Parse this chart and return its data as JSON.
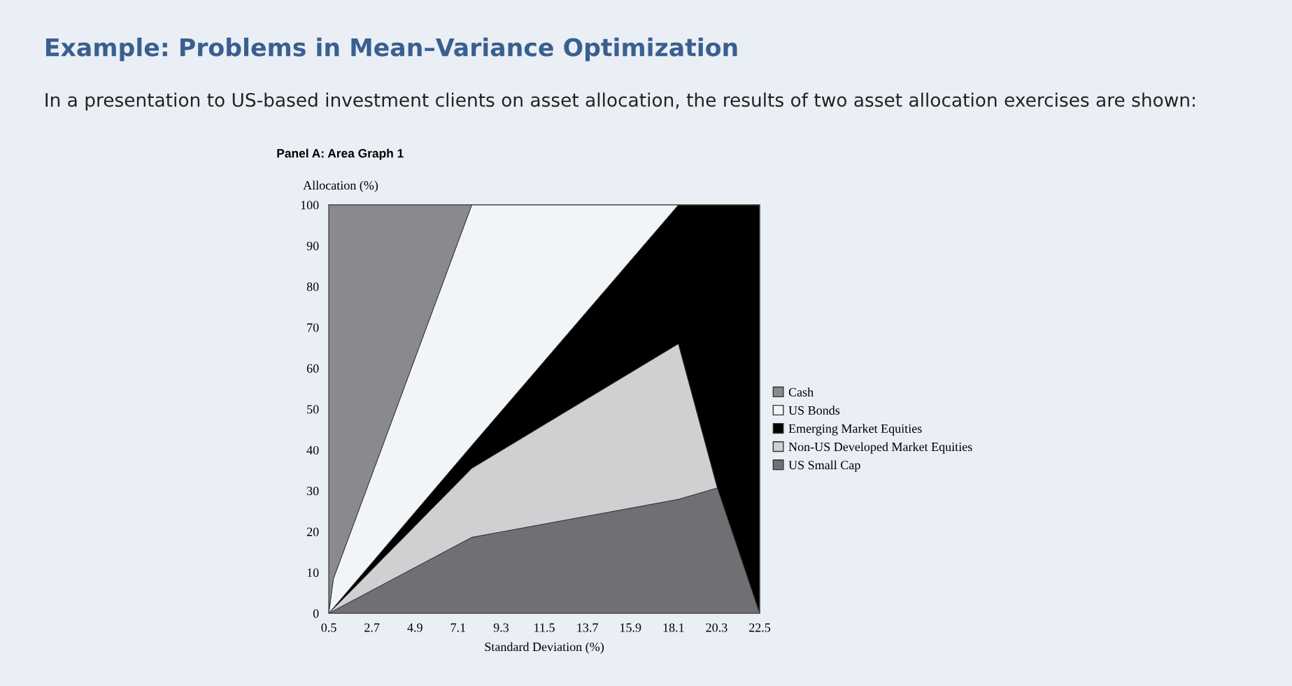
{
  "chart_data": {
    "type": "area",
    "stacked": true,
    "title": "Example: Problems in Mean–Variance Optimization",
    "subtitle": "In a presentation to US-based investment clients on asset allocation, the results of two asset allocation exercises are shown:",
    "annotations": [
      "Panel A: Area Graph 1"
    ],
    "xlabel": "Standard Deviation (%)",
    "ylabel": "Allocation (%)",
    "x": [
      0.5,
      0.73,
      7.8,
      18.35,
      20.34,
      22.5
    ],
    "series": [
      {
        "name": "US Small Cap",
        "color": "#707074",
        "values": [
          0,
          0.6,
          18.6,
          27.9,
          30.7,
          0
        ]
      },
      {
        "name": "Non-US Developed Market Equities",
        "color": "#d0d0d2",
        "values": [
          0,
          0.5,
          16.9,
          38.1,
          0,
          null
        ]
      },
      {
        "name": "Emerging Market Equities",
        "color": "#000000",
        "values": [
          0,
          0.2,
          5.6,
          34.0,
          69.3,
          100
        ]
      },
      {
        "name": "US Bonds",
        "color": "#f2f5f8",
        "values": [
          0,
          7.1,
          58.9,
          0,
          null,
          null
        ]
      },
      {
        "name": "Cash",
        "color": "#8a8a8e",
        "values": [
          100,
          91.6,
          0,
          null,
          null,
          null
        ]
      }
    ],
    "xlim": [
      0.5,
      22.5
    ],
    "xticks": [
      0.5,
      2.7,
      4.9,
      7.1,
      9.3,
      11.5,
      13.7,
      15.9,
      18.1,
      20.3,
      22.5
    ],
    "ylim": [
      0,
      100
    ],
    "yticks": [
      0,
      10,
      20,
      30,
      40,
      50,
      60,
      70,
      80,
      90,
      100
    ],
    "legend": "right",
    "grid": false
  }
}
